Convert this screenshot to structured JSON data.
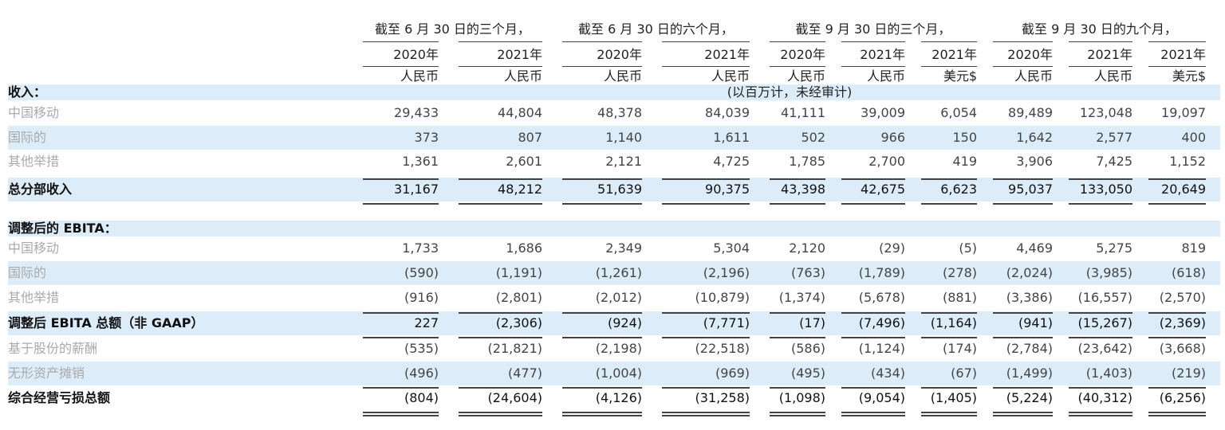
{
  "table": {
    "header": {
      "groups": [
        "截至 6 月 30 日的三个月，",
        "截至 6 月 30 日的六个月，",
        "截至 9 月 30 日的三个月，",
        "截至 9 月 30 日的九个月，"
      ],
      "years": [
        "2020年",
        "2021年",
        "2020年",
        "2021年",
        "2020年",
        "2021年",
        "2021年",
        "2020年",
        "2021年",
        "2021年"
      ],
      "currencies": [
        "人民币",
        "人民币",
        "人民币",
        "人民币",
        "人民币",
        "人民币",
        "美元$",
        "人民币",
        "人民币",
        "美元$"
      ],
      "unit_note": "(以百万计，未经审计)"
    },
    "sections": [
      {
        "title": "收入：",
        "rows": [
          {
            "label": "中国移动",
            "values": [
              "29,433",
              "44,804",
              "48,378",
              "84,039",
              "41,111",
              "39,009",
              "6,054",
              "89,489",
              "123,048",
              "19,097"
            ]
          },
          {
            "label": "国际的",
            "values": [
              "373",
              "807",
              "1,140",
              "1,611",
              "502",
              "966",
              "150",
              "1,642",
              "2,577",
              "400"
            ]
          },
          {
            "label": "其他举措",
            "values": [
              "1,361",
              "2,601",
              "2,121",
              "4,725",
              "1,785",
              "2,700",
              "419",
              "3,906",
              "7,425",
              "1,152"
            ]
          },
          {
            "label": "总分部收入",
            "values": [
              "31,167",
              "48,212",
              "51,639",
              "90,375",
              "43,398",
              "42,675",
              "6,623",
              "95,037",
              "133,050",
              "20,649"
            ]
          }
        ]
      },
      {
        "title": "调整后的 EBITA：",
        "rows": [
          {
            "label": "中国移动",
            "values": [
              "1,733",
              "1,686",
              "2,349",
              "5,304",
              "2,120",
              "(29)",
              "(5)",
              "4,469",
              "5,275",
              "819"
            ]
          },
          {
            "label": "国际的",
            "values": [
              "(590)",
              "(1,191)",
              "(1,261)",
              "(2,196)",
              "(763)",
              "(1,789)",
              "(278)",
              "(2,024)",
              "(3,985)",
              "(618)"
            ]
          },
          {
            "label": "其他举措",
            "values": [
              "(916)",
              "(2,801)",
              "(2,012)",
              "(10,879)",
              "(1,374)",
              "(5,678)",
              "(881)",
              "(3,386)",
              "(16,557)",
              "(2,570)"
            ]
          },
          {
            "label": "调整后 EBITA 总额（非 GAAP）",
            "values": [
              "227",
              "(2,306)",
              "(924)",
              "(7,771)",
              "(17)",
              "(7,496)",
              "(1,164)",
              "(941)",
              "(15,267)",
              "(2,369)"
            ]
          },
          {
            "label": "基于股份的薪酬",
            "values": [
              "(535)",
              "(21,821)",
              "(2,198)",
              "(22,518)",
              "(586)",
              "(1,124)",
              "(174)",
              "(2,784)",
              "(23,642)",
              "(3,668)"
            ]
          },
          {
            "label": "无形资产摊销",
            "values": [
              "(496)",
              "(477)",
              "(1,004)",
              "(969)",
              "(495)",
              "(434)",
              "(67)",
              "(1,499)",
              "(1,403)",
              "(219)"
            ]
          },
          {
            "label": "综合经营亏损总额",
            "values": [
              "(804)",
              "(24,604)",
              "(4,126)",
              "(31,258)",
              "(1,098)",
              "(9,054)",
              "(1,405)",
              "(5,224)",
              "(40,312)",
              "(6,256)"
            ]
          }
        ]
      }
    ]
  }
}
